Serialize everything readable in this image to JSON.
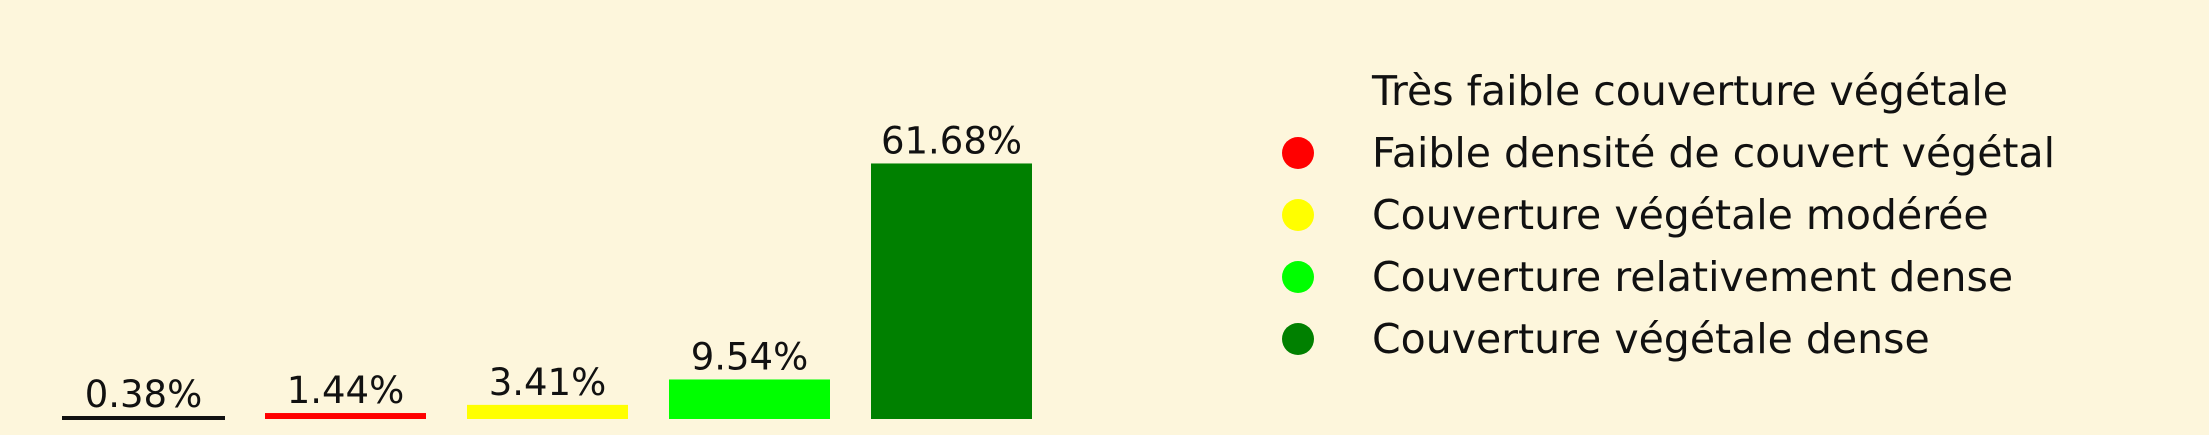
{
  "chart_data": {
    "type": "bar",
    "categories": [
      "Très faible couverture végétale",
      "Faible densité de couvert végétal",
      "Couverture végétale modérée",
      "Couverture relativement dense",
      "Couverture végétale dense"
    ],
    "values": [
      0.38,
      1.44,
      3.41,
      9.54,
      61.68
    ],
    "data_labels": [
      "0.38%",
      "1.44%",
      "3.41%",
      "9.54%",
      "61.68%"
    ],
    "colors": [
      "#fdf6dc",
      "#ff0000",
      "#ffff00",
      "#00ff00",
      "#008000"
    ],
    "ylim": [
      0,
      70
    ],
    "grid": false,
    "legend_position": "right"
  }
}
